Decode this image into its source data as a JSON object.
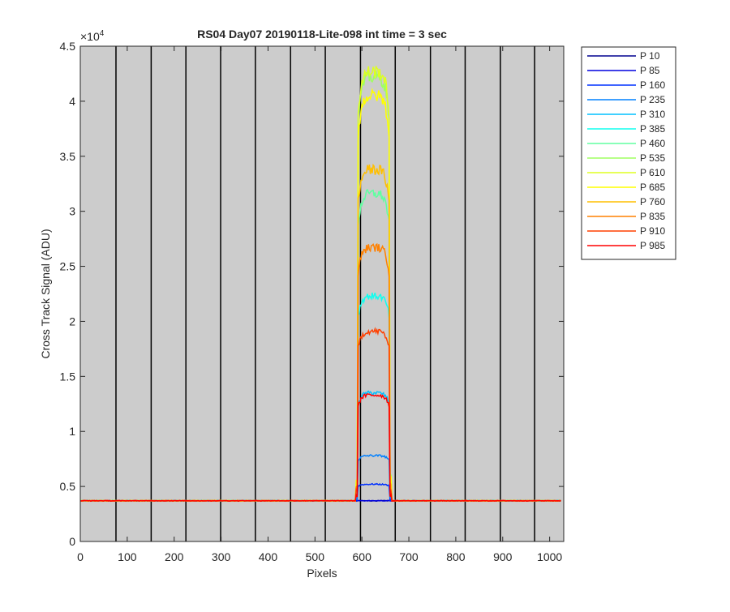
{
  "chart_data": {
    "type": "line",
    "title": "RS04 Day07 20190118-Lite-098 int time = 3 sec",
    "xlabel": "Pixels",
    "ylabel": "Cross Track Signal (ADU)",
    "xlim": [
      0,
      1030
    ],
    "ylim": [
      0,
      45000
    ],
    "y_exponent_label": "×10",
    "y_exponent_power": "4",
    "x_ticks": [
      0,
      100,
      200,
      300,
      400,
      500,
      600,
      700,
      800,
      900,
      1000
    ],
    "x_tick_labels": [
      "0",
      "100",
      "200",
      "300",
      "400",
      "500",
      "600",
      "700",
      "800",
      "900",
      "1000"
    ],
    "y_ticks": [
      0,
      5000,
      10000,
      15000,
      20000,
      25000,
      30000,
      35000,
      40000,
      45000
    ],
    "y_tick_labels": [
      "0",
      "0.5",
      "1",
      "1.5",
      "2",
      "2.5",
      "3",
      "3.5",
      "4",
      "4.5"
    ],
    "vertical_lines_x": [
      76,
      151,
      225,
      299,
      373,
      448,
      522,
      597,
      671,
      746,
      820,
      895,
      968
    ],
    "plot_background": "#cccccc",
    "legend_placement": "outside-top-right",
    "baseline": 3700,
    "plateau_x": [
      590,
      660
    ],
    "series": [
      {
        "name": "P 10",
        "peak": 3700,
        "color": "#00008f"
      },
      {
        "name": "P 85",
        "peak": 3700,
        "color": "#0000df"
      },
      {
        "name": "P 160",
        "peak": 5200,
        "color": "#0030ff"
      },
      {
        "name": "P 235",
        "peak": 7800,
        "color": "#0080ff"
      },
      {
        "name": "P 310",
        "peak": 13500,
        "color": "#00c0ff"
      },
      {
        "name": "P 385",
        "peak": 22300,
        "color": "#10ffef"
      },
      {
        "name": "P 460",
        "peak": 31600,
        "color": "#60ffa0"
      },
      {
        "name": "P 535",
        "peak": 42200,
        "color": "#9fff60"
      },
      {
        "name": "P 610",
        "peak": 42700,
        "color": "#dfff20"
      },
      {
        "name": "P 685",
        "peak": 40500,
        "color": "#ffff00"
      },
      {
        "name": "P 760",
        "peak": 33800,
        "color": "#ffbf00"
      },
      {
        "name": "P 835",
        "peak": 26700,
        "color": "#ff8000"
      },
      {
        "name": "P 910",
        "peak": 19100,
        "color": "#ff4000"
      },
      {
        "name": "P 985",
        "peak": 13300,
        "color": "#ff0000"
      }
    ]
  }
}
